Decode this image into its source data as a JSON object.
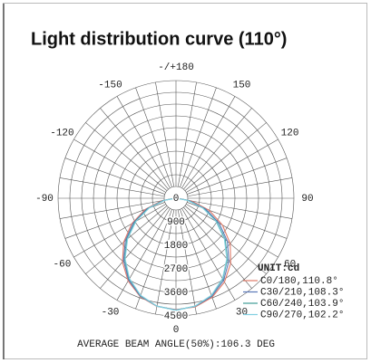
{
  "chart_data": {
    "type": "polar",
    "title": "Light distribution curve  (110°)",
    "x": [
      -90,
      -80,
      -70,
      -60,
      -50,
      -40,
      -30,
      -20,
      -10,
      0,
      10,
      20,
      30,
      40,
      50,
      60,
      70,
      80,
      90
    ],
    "rlim": [
      0,
      4500
    ],
    "rticks": [
      0,
      900,
      1800,
      2700,
      3600,
      4500
    ],
    "thetaticks": [
      0,
      30,
      60,
      90,
      120,
      150,
      {
        "value": 180,
        "label": "-/+180"
      },
      -150,
      -120,
      -90,
      -60,
      -30
    ],
    "grid": true,
    "legend": "lower right",
    "unit_label": "UNIT:cd",
    "annotation": "AVERAGE BEAM ANGLE(50%):106.3 DEG",
    "series": [
      {
        "name": "C0/180,110.8°",
        "color": "#e07a68",
        "values": [
          60,
          560,
          1250,
          1950,
          2600,
          3180,
          3650,
          4000,
          4200,
          4260,
          4220,
          4030,
          3700,
          3250,
          2700,
          2050,
          1350,
          620,
          80
        ]
      },
      {
        "name": "C30/210,108.3°",
        "color": "#5a78b8",
        "values": [
          30,
          500,
          1180,
          1870,
          2520,
          3110,
          3610,
          3980,
          4190,
          4270,
          4200,
          3990,
          3630,
          3140,
          2560,
          1900,
          1200,
          520,
          40
        ]
      },
      {
        "name": "C60/240,103.9°",
        "color": "#3f9c96",
        "values": [
          20,
          460,
          1120,
          1800,
          2450,
          3050,
          3570,
          3960,
          4190,
          4280,
          4190,
          3960,
          3570,
          3050,
          2450,
          1800,
          1120,
          460,
          20
        ]
      },
      {
        "name": "C90/270,102.2°",
        "color": "#82d0e2",
        "values": [
          10,
          430,
          1080,
          1760,
          2410,
          3020,
          3550,
          3950,
          4190,
          4290,
          4190,
          3950,
          3550,
          3020,
          2410,
          1760,
          1080,
          430,
          10
        ]
      }
    ]
  }
}
